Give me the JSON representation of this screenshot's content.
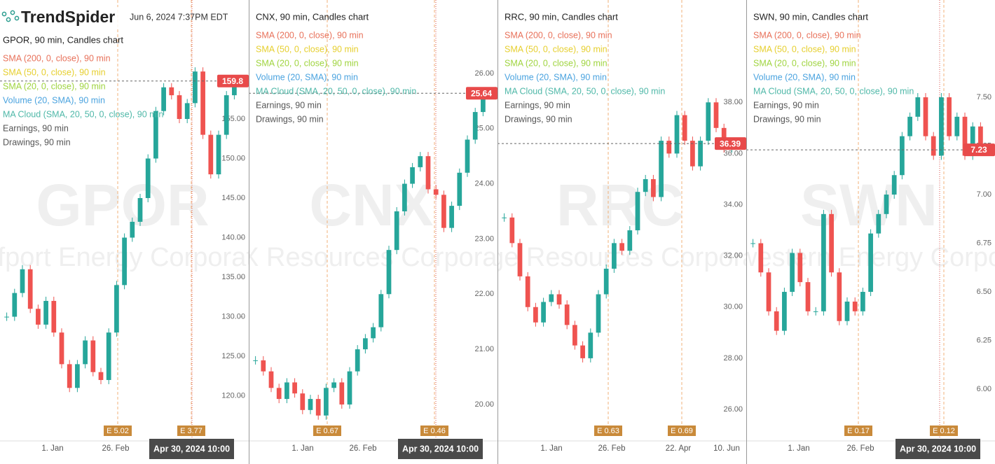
{
  "header": {
    "brand": "TrendSpider",
    "timestamp": "Jun 6, 2024 7:37PM EDT"
  },
  "panels": [
    {
      "chart_data": {
        "type": "candlestick",
        "title": "GPOR, 90 min, Candles chart",
        "watermark": "GPOR",
        "watermark_name": "Gulfport Energy Corporation",
        "legend": [
          {
            "name": "SMA (200, 0, close), 90 min",
            "color": "#e8715a"
          },
          {
            "name": "SMA (50, 0, close), 90 min",
            "color": "#e6cf2e"
          },
          {
            "name": "SMA (20, 0, close), 90 min",
            "color": "#9fd43f"
          },
          {
            "name": "Volume (20, SMA), 90 min",
            "color": "#4aa3df"
          },
          {
            "name": "MA Cloud (SMA, 20, 50, 0, close), 90 min",
            "color": "#4fb8a8"
          },
          {
            "name": "Earnings, 90 min",
            "color": "#555555"
          },
          {
            "name": "Drawings, 90 min",
            "color": "#555555"
          }
        ],
        "ylim": [
          114.3,
          170.04
        ],
        "yticks": [
          {
            "value": 155,
            "label": "155.00"
          },
          {
            "value": 150,
            "label": "150.00"
          },
          {
            "value": 145,
            "label": "145.00"
          },
          {
            "value": 140,
            "label": "140.00"
          },
          {
            "value": 135,
            "label": "135.00"
          },
          {
            "value": 130,
            "label": "130.00"
          },
          {
            "value": 125,
            "label": "125.00"
          },
          {
            "value": 120,
            "label": "120.00"
          }
        ],
        "x_labels": [
          "1. Jan",
          "26. Feb"
        ],
        "crosshair_label": "Apr 30, 2024 10:00",
        "last_price": {
          "value": 159.8,
          "label": "159.8"
        },
        "earnings": [
          {
            "value": 5.02,
            "label": "E 5.02"
          },
          {
            "value": 3.77,
            "label": "E 3.77"
          }
        ],
        "closes": [
          130,
          133,
          136,
          131,
          129,
          132,
          128,
          124,
          121,
          124,
          127,
          123,
          122,
          128,
          134,
          140,
          142,
          145,
          150,
          156,
          159,
          158,
          155,
          157,
          161,
          153,
          148,
          153,
          158,
          159.8
        ]
      }
    },
    {
      "chart_data": {
        "type": "candlestick",
        "title": "CNX, 90 min, Candles chart",
        "watermark": "CNX",
        "watermark_name": "CNX Resources Corporation",
        "legend": [
          {
            "name": "SMA (200, 0, close), 90 min",
            "color": "#e8715a"
          },
          {
            "name": "SMA (50, 0, close), 90 min",
            "color": "#e6cf2e"
          },
          {
            "name": "SMA (20, 0, close), 90 min",
            "color": "#9fd43f"
          },
          {
            "name": "Volume (20, SMA), 90 min",
            "color": "#4aa3df"
          },
          {
            "name": "MA Cloud (SMA, 20, 50, 0, close), 90 min",
            "color": "#4fb8a8"
          },
          {
            "name": "Earnings, 90 min",
            "color": "#555555"
          },
          {
            "name": "Drawings, 90 min",
            "color": "#555555"
          }
        ],
        "ylim": [
          19.34,
          27.33
        ],
        "yticks": [
          {
            "value": 26,
            "label": "26.00"
          },
          {
            "value": 25,
            "label": "25.00"
          },
          {
            "value": 24,
            "label": "24.00"
          },
          {
            "value": 23,
            "label": "23.00"
          },
          {
            "value": 22,
            "label": "22.00"
          },
          {
            "value": 21,
            "label": "21.00"
          },
          {
            "value": 20,
            "label": "20.00"
          }
        ],
        "x_labels": [
          "1. Jan",
          "26. Feb"
        ],
        "crosshair_label": "Apr 30, 2024 10:00",
        "last_price": {
          "value": 25.64,
          "label": "25.64"
        },
        "earnings": [
          {
            "value": 0.67,
            "label": "E 0.67"
          },
          {
            "value": 0.46,
            "label": "E 0.46"
          }
        ],
        "closes": [
          20.8,
          20.6,
          20.3,
          20.1,
          20.4,
          20.2,
          19.9,
          20.1,
          19.8,
          20.3,
          20.4,
          20.0,
          20.6,
          21.0,
          21.2,
          21.4,
          22.0,
          22.8,
          23.5,
          24.0,
          24.3,
          24.5,
          23.9,
          23.8,
          23.2,
          23.6,
          24.2,
          24.8,
          25.3,
          25.64
        ]
      }
    },
    {
      "chart_data": {
        "type": "candlestick",
        "title": "RRC, 90 min, Candles chart",
        "watermark": "RRC",
        "watermark_name": "Range Resources Corporation",
        "legend": [
          {
            "name": "SMA (200, 0, close), 90 min",
            "color": "#e8715a"
          },
          {
            "name": "SMA (50, 0, close), 90 min",
            "color": "#e6cf2e"
          },
          {
            "name": "SMA (20, 0, close), 90 min",
            "color": "#9fd43f"
          },
          {
            "name": "Volume (20, SMA), 90 min",
            "color": "#4aa3df"
          },
          {
            "name": "MA Cloud (SMA, 20, 50, 0, close), 90 min",
            "color": "#4fb8a8"
          },
          {
            "name": "Earnings, 90 min",
            "color": "#555555"
          },
          {
            "name": "Drawings, 90 min",
            "color": "#555555"
          }
        ],
        "ylim": [
          24.77,
          42.0
        ],
        "yticks": [
          {
            "value": 38,
            "label": "38.00"
          },
          {
            "value": 36,
            "label": "36.00"
          },
          {
            "value": 34,
            "label": "34.00"
          },
          {
            "value": 32,
            "label": "32.00"
          },
          {
            "value": 30,
            "label": "30.00"
          },
          {
            "value": 28,
            "label": "28.00"
          },
          {
            "value": 26,
            "label": "26.00"
          }
        ],
        "x_labels": [
          "1. Jan",
          "26. Feb",
          "22. Apr",
          "10. Jun"
        ],
        "last_price": {
          "value": 36.39,
          "label": "36.39"
        },
        "earnings": [
          {
            "value": 0.63,
            "label": "E 0.63"
          },
          {
            "value": 0.69,
            "label": "E 0.69"
          }
        ],
        "closes": [
          33.5,
          32.5,
          31.2,
          30.0,
          29.4,
          30.2,
          30.5,
          30.1,
          29.3,
          28.5,
          28.0,
          29.0,
          30.5,
          31.5,
          32.5,
          32.2,
          33.0,
          34.5,
          35.0,
          34.3,
          36.5,
          36.0,
          37.5,
          36.5,
          35.5,
          36.5,
          38.0,
          37.0,
          36.2,
          36.39
        ]
      }
    },
    {
      "chart_data": {
        "type": "candlestick",
        "title": "SWN, 90 min, Candles chart",
        "watermark": "SWN",
        "watermark_name": "Southwestern Energy Corporation",
        "legend": [
          {
            "name": "SMA (200, 0, close), 90 min",
            "color": "#e8715a"
          },
          {
            "name": "SMA (50, 0, close), 90 min",
            "color": "#e6cf2e"
          },
          {
            "name": "SMA (20, 0, close), 90 min",
            "color": "#9fd43f"
          },
          {
            "name": "Volume (20, SMA), 90 min",
            "color": "#4aa3df"
          },
          {
            "name": "MA Cloud (SMA, 20, 50, 0, close), 90 min",
            "color": "#4fb8a8"
          },
          {
            "name": "Earnings, 90 min",
            "color": "#555555"
          },
          {
            "name": "Drawings, 90 min",
            "color": "#555555"
          }
        ],
        "ylim": [
          5.734,
          8.0
        ],
        "yticks": [
          {
            "value": 7.5,
            "label": "7.50"
          },
          {
            "value": 7.25,
            "label": "7.25"
          },
          {
            "value": 7,
            "label": "7.00"
          },
          {
            "value": 6.75,
            "label": "6.75"
          },
          {
            "value": 6.5,
            "label": "6.50"
          },
          {
            "value": 6.25,
            "label": "6.25"
          },
          {
            "value": 6,
            "label": "6.00"
          }
        ],
        "x_labels": [
          "1. Jan",
          "26. Feb"
        ],
        "crosshair_label": "Apr 30, 2024 10:00",
        "last_price": {
          "value": 7.23,
          "label": "7.23"
        },
        "earnings": [
          {
            "value": 0.17,
            "label": "E 0.17"
          },
          {
            "value": 0.12,
            "label": "E 0.12"
          }
        ],
        "closes": [
          6.75,
          6.6,
          6.4,
          6.3,
          6.5,
          6.7,
          6.55,
          6.4,
          6.4,
          6.9,
          6.6,
          6.35,
          6.45,
          6.4,
          6.5,
          6.8,
          6.9,
          7.0,
          7.1,
          7.3,
          7.4,
          7.5,
          7.3,
          7.2,
          7.5,
          7.3,
          7.4,
          7.2,
          7.35,
          7.23
        ]
      }
    }
  ]
}
